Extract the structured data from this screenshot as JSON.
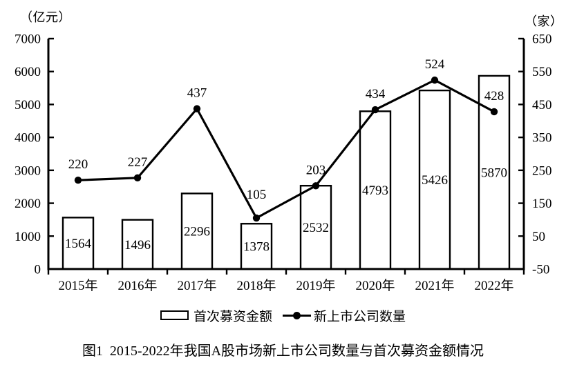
{
  "chart_data": {
    "type": "combo",
    "title": "图1  2015-2022年我国A股市场新上市公司数量与首次募资金额情况",
    "categories": [
      "2015年",
      "2016年",
      "2017年",
      "2018年",
      "2019年",
      "2020年",
      "2021年",
      "2022年"
    ],
    "series": [
      {
        "name": "首次募资金额",
        "type": "bar",
        "axis": "left",
        "values": [
          1564,
          1496,
          2296,
          1378,
          2532,
          4793,
          5426,
          5870
        ]
      },
      {
        "name": "新上市公司数量",
        "type": "line",
        "axis": "right",
        "values": [
          220,
          227,
          437,
          105,
          203,
          434,
          524,
          428
        ]
      }
    ],
    "left_axis": {
      "label": "（亿元）",
      "min": 0,
      "max": 7000,
      "ticks": [
        0,
        1000,
        2000,
        3000,
        4000,
        5000,
        6000,
        7000
      ]
    },
    "right_axis": {
      "label": "（家）",
      "min": -50,
      "max": 650,
      "ticks": [
        -50,
        50,
        150,
        250,
        350,
        450,
        550,
        650
      ]
    },
    "grid": false,
    "legend_position": "bottom",
    "data_labels": true,
    "colors": {
      "foreground": "#000000",
      "background": "#ffffff",
      "bar_fill": "#ffffff",
      "bar_border": "#000000",
      "line": "#000000"
    }
  }
}
